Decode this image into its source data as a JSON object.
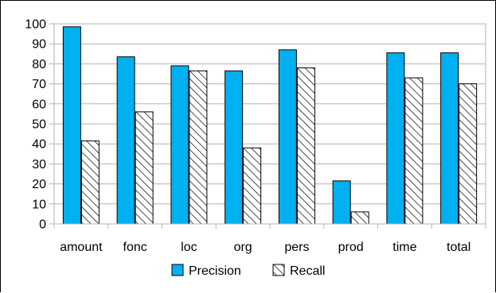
{
  "chart_data": {
    "type": "bar",
    "title": "",
    "xlabel": "",
    "ylabel": "",
    "categories": [
      "amount",
      "fonc",
      "loc",
      "org",
      "pers",
      "prod",
      "time",
      "total"
    ],
    "series": [
      {
        "name": "Precision",
        "values": [
          98.5,
          83.5,
          79,
          76.5,
          87,
          21.5,
          85.5,
          85.5
        ],
        "color": "#00b0f0",
        "pattern": "solid"
      },
      {
        "name": "Recall",
        "values": [
          41.5,
          56,
          76.5,
          38,
          78,
          6,
          73,
          70
        ],
        "color": "#ffffff",
        "pattern": "diagonal-hatch"
      }
    ],
    "ylim": [
      0,
      100
    ],
    "yticks": [
      "0",
      "10",
      "20",
      "30",
      "40",
      "50",
      "60",
      "70",
      "80",
      "90",
      "100"
    ],
    "grid": true,
    "legend_position": "bottom"
  }
}
